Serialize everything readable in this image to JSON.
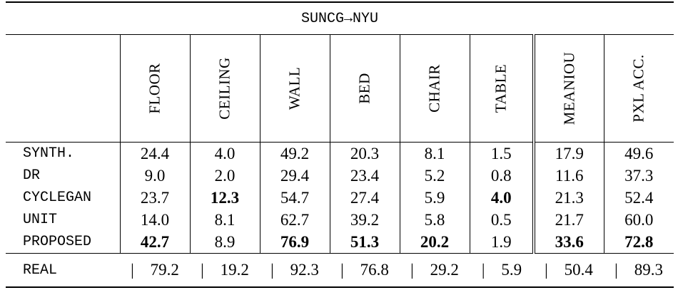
{
  "title": "SUNCG→NYU",
  "columns": [
    "FLOOR",
    "CEILING",
    "WALL",
    "BED",
    "CHAIR",
    "TABLE",
    "MEANIOU",
    "PXL ACC."
  ],
  "chart_data": {
    "type": "table",
    "title": "SUNCG→NYU",
    "columns": [
      "FLOOR",
      "CEILING",
      "WALL",
      "BED",
      "CHAIR",
      "TABLE",
      "MEANIOU",
      "PXL ACC."
    ],
    "rows": [
      {
        "method": "SYNTH.",
        "values": [
          "24.4",
          "4.0",
          "49.2",
          "20.3",
          "8.1",
          "1.5",
          "17.9",
          "49.6"
        ]
      },
      {
        "method": "DR",
        "values": [
          "9.0",
          "2.0",
          "29.4",
          "23.4",
          "5.2",
          "0.8",
          "11.6",
          "37.3"
        ]
      },
      {
        "method": "CYCLEGAN",
        "values": [
          "23.7",
          "12.3",
          "54.7",
          "27.4",
          "5.9",
          "4.0",
          "21.3",
          "52.4"
        ]
      },
      {
        "method": "UNIT",
        "values": [
          "14.0",
          "8.1",
          "62.7",
          "39.2",
          "5.8",
          "0.5",
          "21.7",
          "60.0"
        ]
      },
      {
        "method": "PROPOSED",
        "values": [
          "42.7",
          "8.9",
          "76.9",
          "51.3",
          "20.2",
          "1.9",
          "33.6",
          "72.8"
        ]
      },
      {
        "method": "REAL",
        "values": [
          "79.2",
          "19.2",
          "92.3",
          "76.8",
          "29.2",
          "5.9",
          "50.4",
          "89.3"
        ]
      }
    ],
    "bold": [
      {
        "row": 2,
        "col": 1
      },
      {
        "row": 2,
        "col": 5
      },
      {
        "row": 4,
        "col": 0
      },
      {
        "row": 4,
        "col": 2
      },
      {
        "row": 4,
        "col": 3
      },
      {
        "row": 4,
        "col": 4
      },
      {
        "row": 4,
        "col": 6
      },
      {
        "row": 4,
        "col": 7
      }
    ],
    "separator_mark": "|"
  }
}
